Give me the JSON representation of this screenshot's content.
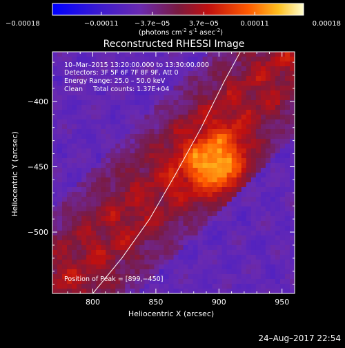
{
  "chart_data": {
    "type": "heatmap",
    "title": "Reconstructed RHESSI Image",
    "xlabel": "Heliocentric X (arcsec)",
    "ylabel": "Heliocentric Y (arcsec)",
    "xlim": [
      768,
      960
    ],
    "ylim": [
      -547,
      -362
    ],
    "x_ticks": [
      800,
      850,
      900,
      950
    ],
    "y_ticks": [
      -400,
      -450,
      -500
    ],
    "x_tick_labels": [
      "800",
      "850",
      "900",
      "950"
    ],
    "y_tick_labels": [
      "−400",
      "−450",
      "−500"
    ],
    "colorbar": {
      "unit_label": "(photons cm",
      "unit_sup1": "-2",
      "unit_mid": " s",
      "unit_sup2": "-1",
      "unit_end": " asec",
      "unit_sup3": "-2",
      "unit_close": ")",
      "min": -0.00018,
      "max": 0.00018,
      "ticks": [
        -0.00018,
        -0.00011,
        -3.7e-05,
        3.7e-05,
        0.00011,
        0.00018
      ],
      "tick_labels": [
        "−0.00018",
        "−0.00011",
        "−3.7e−05",
        "3.7e−05",
        "0.00011",
        "0.00018"
      ]
    },
    "annotations": {
      "time_range": "10–Mar–2015 13:20:00.000 to 13:30:00.000",
      "detectors": "Detectors: 3F 5F 6F 7F 8F 9F, Att 0",
      "energy_range": "Energy Range: 25.0 – 50.0 keV",
      "clean_label": "Clean",
      "total_counts": "Total counts: 1.37E+04",
      "peak": "Position of Peak = [899,−450]"
    },
    "peak": {
      "x": 899,
      "y": -450
    },
    "limb_curve": [
      [
        800,
        -547
      ],
      [
        823,
        -520
      ],
      [
        845,
        -490
      ],
      [
        866,
        -455
      ],
      [
        886,
        -420
      ],
      [
        904,
        -385
      ],
      [
        917,
        -362
      ]
    ]
  },
  "footer": {
    "timestamp": "24–Aug–2017 22:54"
  }
}
